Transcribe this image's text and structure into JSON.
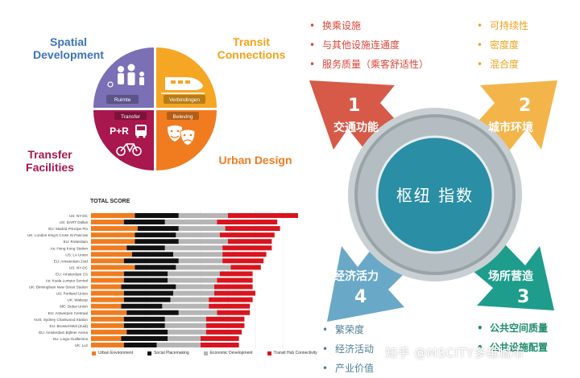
{
  "dutch_diagram": {
    "labels": {
      "spatial_development": "Spatial\nDevelopment",
      "transit_connections": "Transit\nConnections",
      "transfer_facilities": "Transfer\nFacilities",
      "urban_design": "Urban Design"
    },
    "quadrants": {
      "ruimte": "Ruimte",
      "verbindingen": "Verbindingen",
      "transfer": "Transfer",
      "pr": "P+R",
      "beleving": "Beleving"
    },
    "colors": {
      "spatial": "#7b6fb5",
      "transit": "#f5a623",
      "transfer": "#a8174e",
      "urban": "#f07c1f"
    }
  },
  "hub_diagram": {
    "center_label": "枢纽 指数",
    "arrows": [
      {
        "num": "1",
        "label": "交通功能",
        "color": "#d65a47"
      },
      {
        "num": "2",
        "label": "城市环境",
        "color": "#f3b54a"
      },
      {
        "num": "3",
        "label": "场所营造",
        "color": "#1f9d8c"
      },
      {
        "num": "4",
        "label": "经济活力",
        "color": "#6aa8c7"
      }
    ],
    "lists": {
      "transport": {
        "color": "#d9473a",
        "items": [
          "换乘设施",
          "与其他设施连通度",
          "服务质量（乘客舒适性）"
        ]
      },
      "environment": {
        "color": "#f0a21c",
        "items": [
          "可持续性",
          "密度度",
          "混合度"
        ]
      },
      "economy": {
        "color": "#4d7f96",
        "items": [
          "繁荣度",
          "经济活动",
          "产业价值"
        ]
      },
      "place": {
        "color": "#1f8c6e",
        "items": [
          "公共空间质量",
          "公共设施配置"
        ]
      }
    }
  },
  "chart_data": {
    "type": "bar",
    "title": "TOTAL SCORE",
    "stacked": true,
    "orientation": "horizontal",
    "categories": [
      "US: NY-DC",
      "US: DART Dallas",
      "EU: Madrid Principe Pio",
      "UK: London King's Cross St Pancras",
      "EU: Rotterdam",
      "As: Hong Kong Station",
      "US: LA Union",
      "EU: Amsterdam Zuid",
      "US: NY-DC",
      "EU: Amsterdam CS",
      "As: Kuala Lumpur Sentral",
      "UK: Birmingham New Street Station",
      "US: Portland Union",
      "UK: Wakeup",
      "ME: Dubai Union",
      "EU: Antwerpen Centraal",
      "AUS: Sydney Chatswood Station",
      "EU: Brussel-Midi (Zuid)",
      "EU: Amsterdam Bijlmer Arena",
      "EU: Lingo Guillemins",
      "UK: Luz"
    ],
    "series": [
      {
        "name": "Urban Environment",
        "color": "#f07c1f",
        "values": [
          16,
          12,
          17,
          16,
          16,
          13,
          15,
          12,
          16,
          12,
          12,
          11,
          12,
          12,
          11,
          13,
          12,
          12,
          13,
          11,
          12
        ]
      },
      {
        "name": "Social Placemaking",
        "color": "#111111",
        "values": [
          16,
          15,
          15,
          15,
          16,
          14,
          15,
          20,
          15,
          16,
          16,
          20,
          18,
          17,
          15,
          19,
          15,
          15,
          15,
          17,
          12
        ]
      },
      {
        "name": "Economic Development",
        "color": "#b5b5b5",
        "values": [
          18,
          19,
          17,
          16,
          18,
          21,
          18,
          16,
          20,
          19,
          18,
          14,
          15,
          14,
          17,
          14,
          15,
          15,
          14,
          12,
          16
        ]
      },
      {
        "name": "Transit Hub Connectivity",
        "color": "#d9141e",
        "values": [
          26,
          22,
          20,
          20,
          16,
          18,
          16,
          15,
          11,
          12,
          13,
          14,
          15,
          16,
          15,
          12,
          14,
          14,
          13,
          14,
          14
        ]
      }
    ],
    "xlim": [
      0,
      80
    ],
    "legend": "bottom",
    "grid": true
  },
  "watermark": "知乎 @MSCITY多维城市"
}
